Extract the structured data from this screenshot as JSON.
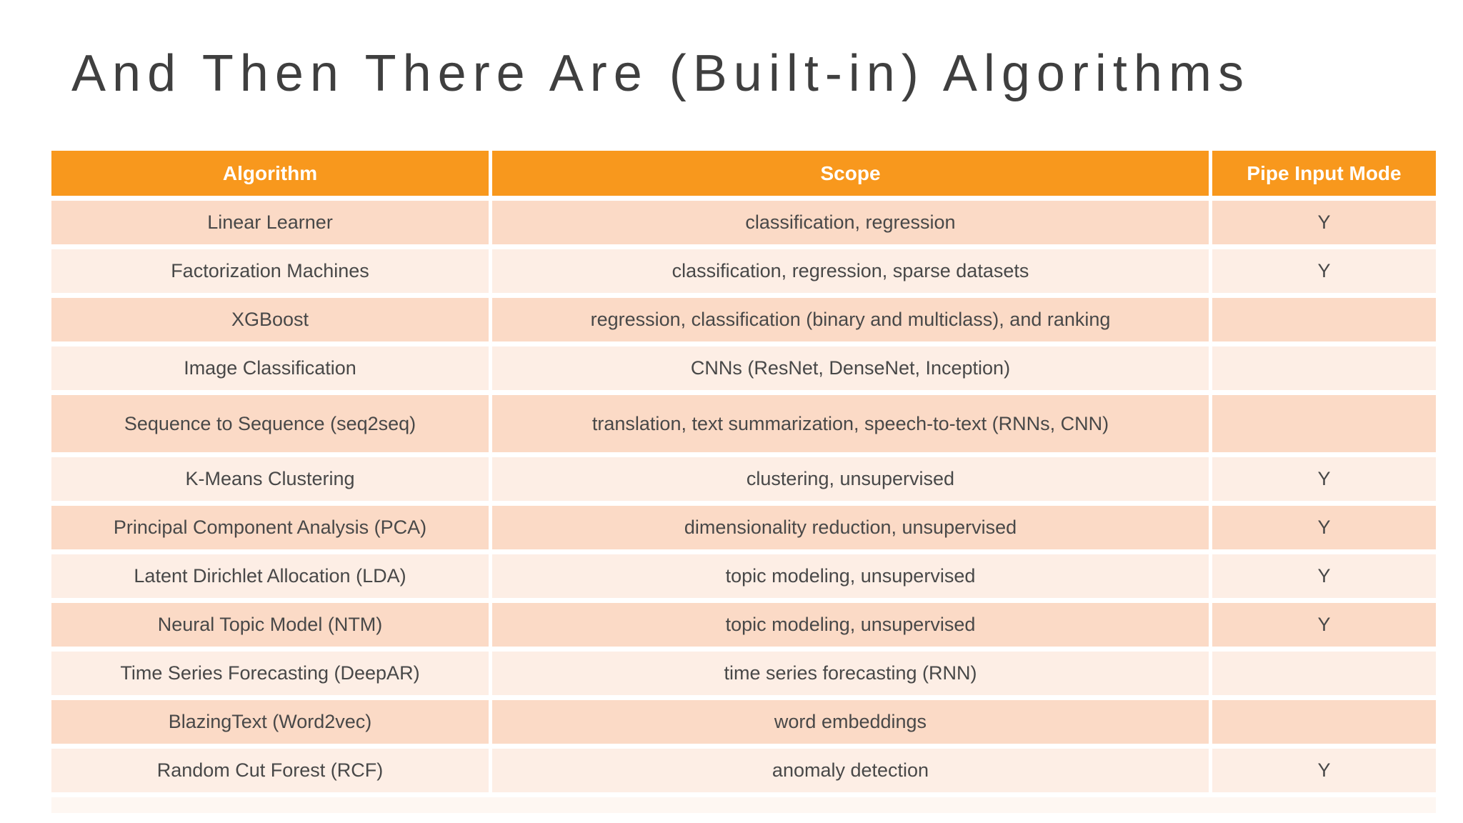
{
  "slide": {
    "title": "And Then There Are (Built-in) Algorithms"
  },
  "table": {
    "columns": [
      "Algorithm",
      "Scope",
      "Pipe Input Mode"
    ],
    "rows": [
      {
        "algorithm": "Linear Learner",
        "scope": "classification, regression",
        "pipe_input_mode": "Y"
      },
      {
        "algorithm": "Factorization Machines",
        "scope": "classification, regression, sparse datasets",
        "pipe_input_mode": "Y"
      },
      {
        "algorithm": "XGBoost",
        "scope": "regression, classification (binary and multiclass), and ranking",
        "pipe_input_mode": ""
      },
      {
        "algorithm": "Image Classification",
        "scope": "CNNs (ResNet, DenseNet, Inception)",
        "pipe_input_mode": ""
      },
      {
        "algorithm": "Sequence to Sequence (seq2seq)",
        "scope": "translation, text summarization, speech-to-text (RNNs, CNN)",
        "pipe_input_mode": ""
      },
      {
        "algorithm": "K-Means Clustering",
        "scope": "clustering, unsupervised",
        "pipe_input_mode": "Y"
      },
      {
        "algorithm": "Principal Component Analysis (PCA)",
        "scope": "dimensionality reduction, unsupervised",
        "pipe_input_mode": "Y"
      },
      {
        "algorithm": "Latent Dirichlet Allocation (LDA)",
        "scope": "topic modeling, unsupervised",
        "pipe_input_mode": "Y"
      },
      {
        "algorithm": "Neural Topic Model (NTM)",
        "scope": "topic modeling, unsupervised",
        "pipe_input_mode": "Y"
      },
      {
        "algorithm": "Time Series Forecasting (DeepAR)",
        "scope": "time series forecasting (RNN)",
        "pipe_input_mode": ""
      },
      {
        "algorithm": "BlazingText (Word2vec)",
        "scope": "word embeddings",
        "pipe_input_mode": ""
      },
      {
        "algorithm": "Random Cut Forest (RCF)",
        "scope": "anomaly detection",
        "pipe_input_mode": "Y"
      }
    ]
  },
  "colors": {
    "header_bg": "#F8981D",
    "header_text": "#FFFFFF",
    "row_dark": "#FBDAC6",
    "row_light": "#FDEEE5",
    "title_text": "#3F3F3F",
    "cell_text": "#484848",
    "footer_strip": "#FEF7F2"
  }
}
